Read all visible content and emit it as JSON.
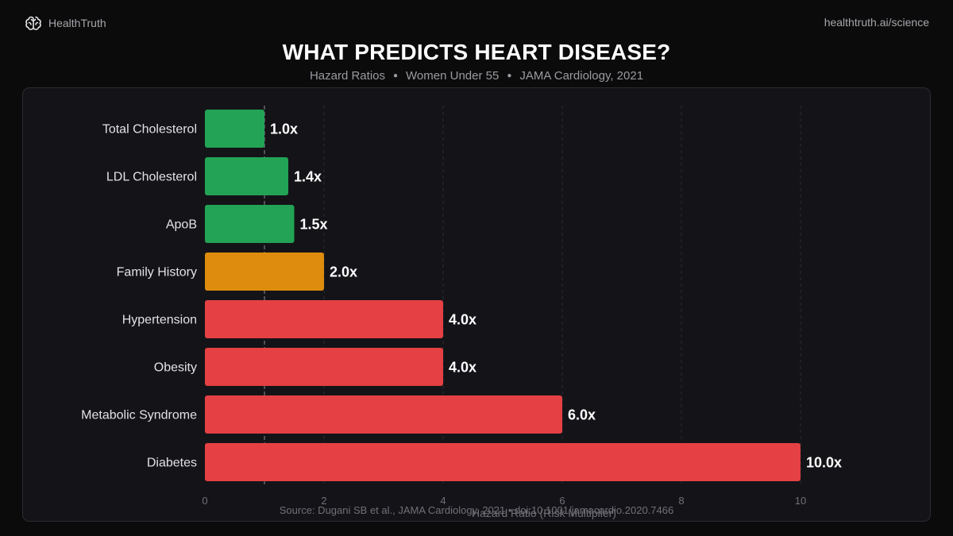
{
  "brand": {
    "name": "HealthTruth",
    "logo_icon": "brain-icon"
  },
  "header": {
    "site_url": "healthtruth.ai/science"
  },
  "title": "WHAT PREDICTS HEART DISEASE?",
  "subtitle": {
    "part1": "Hazard Ratios",
    "part2": "Women Under 55",
    "part3": "JAMA Cardiology, 2021"
  },
  "source": "Source: Dugani SB et al., JAMA Cardiology, 2021  •  doi:10.1001/jamacardio.2020.7466",
  "colors": {
    "green": "#22a355",
    "amber": "#de8c0d",
    "red": "#e54043",
    "background": "#0b0b0c",
    "panel": "#141418"
  },
  "chart_data": {
    "type": "bar",
    "orientation": "horizontal",
    "title": "WHAT PREDICTS HEART DISEASE?",
    "xlabel": "Hazard Ratio (Risk Multiplier)",
    "ylabel": "",
    "xlim": [
      0,
      10
    ],
    "xticks": [
      0,
      2,
      4,
      6,
      8,
      10
    ],
    "reference_line": 1,
    "categories": [
      "Total Cholesterol",
      "LDL Cholesterol",
      "ApoB",
      "Family History",
      "Hypertension",
      "Obesity",
      "Metabolic Syndrome",
      "Diabetes"
    ],
    "values": [
      1.0,
      1.4,
      1.5,
      2.0,
      4.0,
      4.0,
      6.0,
      10.0
    ],
    "value_labels": [
      "1.0x",
      "1.4x",
      "1.5x",
      "2.0x",
      "4.0x",
      "4.0x",
      "6.0x",
      "10.0x"
    ],
    "bar_colors": [
      "green",
      "green",
      "green",
      "amber",
      "red",
      "red",
      "red",
      "red"
    ]
  }
}
